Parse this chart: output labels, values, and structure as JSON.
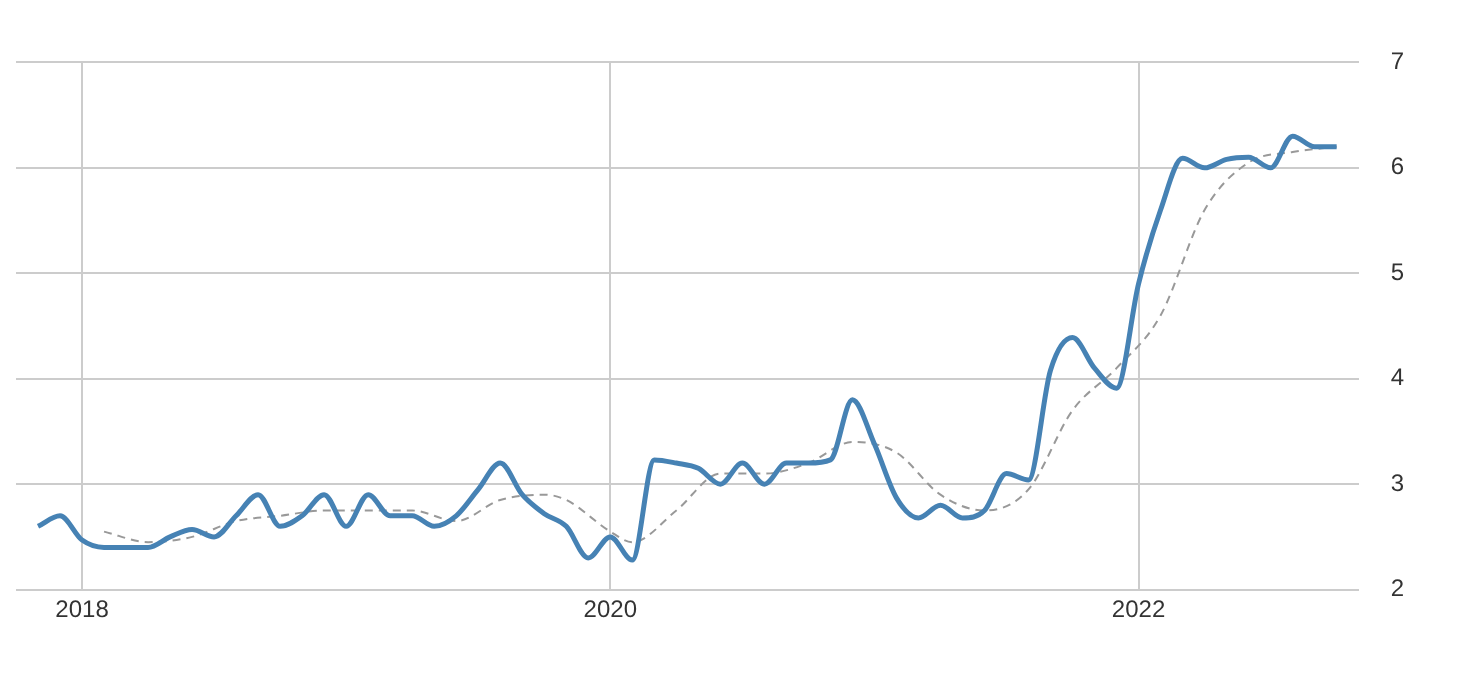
{
  "chart_data": {
    "type": "line",
    "xlim": [
      "2017-10",
      "2022-11"
    ],
    "xticks": [
      "2018",
      "2020",
      "2022"
    ],
    "ylim": [
      2,
      7
    ],
    "yticks": [
      2,
      3,
      4,
      5,
      6,
      7
    ],
    "grid": true,
    "legend": false,
    "marker": "none",
    "series": [
      {
        "color": "#4682b4",
        "line_style": "solid",
        "x": [
          "2017-11",
          "2017-12",
          "2018-01",
          "2018-02",
          "2018-03",
          "2018-04",
          "2018-05",
          "2018-06",
          "2018-07",
          "2018-08",
          "2018-09",
          "2018-10",
          "2018-11",
          "2018-12",
          "2019-01",
          "2019-02",
          "2019-03",
          "2019-04",
          "2019-05",
          "2019-06",
          "2019-07",
          "2019-08",
          "2019-09",
          "2019-10",
          "2019-11",
          "2019-12",
          "2020-01",
          "2020-02",
          "2020-03",
          "2020-04",
          "2020-05",
          "2020-06",
          "2020-07",
          "2020-08",
          "2020-09",
          "2020-10",
          "2020-11",
          "2020-12",
          "2021-01",
          "2021-02",
          "2021-03",
          "2021-04",
          "2021-05",
          "2021-06",
          "2021-07",
          "2021-08",
          "2021-09",
          "2021-10",
          "2021-11",
          "2021-12",
          "2022-01",
          "2022-02",
          "2022-03",
          "2022-04",
          "2022-05",
          "2022-06",
          "2022-07",
          "2022-08",
          "2022-09",
          "2022-10"
        ],
        "values": [
          2.6,
          2.7,
          2.47,
          2.4,
          2.4,
          2.4,
          2.5,
          2.57,
          2.5,
          2.7,
          2.9,
          2.6,
          2.7,
          2.9,
          2.6,
          2.9,
          2.7,
          2.7,
          2.6,
          2.7,
          2.95,
          3.2,
          2.9,
          2.72,
          2.6,
          2.3,
          2.5,
          2.28,
          3.23,
          3.2,
          3.15,
          3.0,
          3.2,
          3.0,
          3.2,
          3.2,
          3.23,
          3.8,
          3.38,
          2.87,
          2.68,
          2.8,
          2.68,
          2.75,
          3.1,
          3.04,
          4.08,
          4.39,
          4.1,
          3.91,
          4.9,
          5.6,
          6.09,
          6.0,
          6.08,
          6.1,
          6.0,
          6.3,
          6.2,
          6.2
        ]
      },
      {
        "color": "#999999",
        "line_style": "dashed",
        "x": [
          "2018-02",
          "2018-04",
          "2018-06",
          "2018-08",
          "2018-10",
          "2018-12",
          "2019-02",
          "2019-04",
          "2019-06",
          "2019-08",
          "2019-10",
          "2019-11",
          "2020-01",
          "2020-02",
          "2020-04",
          "2020-06",
          "2020-08",
          "2020-10",
          "2020-12",
          "2021-02",
          "2021-04",
          "2021-06",
          "2021-08",
          "2021-10",
          "2021-12",
          "2022-02",
          "2022-04",
          "2022-06",
          "2022-08",
          "2022-10"
        ],
        "values": [
          2.55,
          2.45,
          2.5,
          2.65,
          2.7,
          2.75,
          2.75,
          2.75,
          2.65,
          2.85,
          2.9,
          2.85,
          2.55,
          2.45,
          2.75,
          3.1,
          3.1,
          3.2,
          3.4,
          3.3,
          2.9,
          2.75,
          2.95,
          3.7,
          4.1,
          4.6,
          5.6,
          6.05,
          6.15,
          6.2
        ]
      }
    ]
  }
}
